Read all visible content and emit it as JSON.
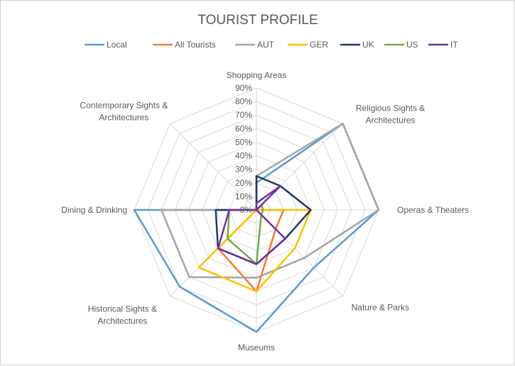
{
  "chart_data": {
    "type": "radar",
    "title": "TOURIST PROFILE",
    "categories": [
      [
        "Shopping Areas"
      ],
      [
        "Religious Sights &",
        "Architectures"
      ],
      [
        "Operas & Theaters"
      ],
      [
        "Nature & Parks"
      ],
      [
        "Museums"
      ],
      [
        "Historical Sights &",
        "Architectures"
      ],
      [
        "Dining & Drinking"
      ],
      [
        "Contemporary Sights &",
        "Architectures"
      ]
    ],
    "ticks": [
      "0%",
      "10%",
      "20%",
      "30%",
      "40%",
      "50%",
      "60%",
      "70%",
      "80%",
      "90%"
    ],
    "rmax": 90,
    "grid": true,
    "legend_position": "top",
    "series": [
      {
        "name": "Local",
        "color": "#5B9BD5",
        "values": [
          20,
          90,
          90,
          60,
          90,
          80,
          90,
          0
        ]
      },
      {
        "name": "All Tourists",
        "color": "#ED7D31",
        "values": [
          0,
          0,
          20,
          20,
          60,
          40,
          0,
          0
        ]
      },
      {
        "name": "AUT",
        "color": "#A5A5A5",
        "values": [
          25,
          90,
          90,
          50,
          50,
          70,
          70,
          0
        ]
      },
      {
        "name": "GER",
        "color": "#FFC000",
        "values": [
          0,
          0,
          40,
          40,
          60,
          60,
          0,
          0
        ]
      },
      {
        "name": "UK",
        "color": "#203864",
        "values": [
          25,
          25,
          40,
          30,
          40,
          40,
          30,
          0
        ]
      },
      {
        "name": "US",
        "color": "#70AD47",
        "values": [
          0,
          5,
          5,
          5,
          40,
          30,
          20,
          0
        ]
      },
      {
        "name": "IT",
        "color": "#7030A0",
        "values": [
          5,
          25,
          0,
          30,
          40,
          40,
          20,
          0
        ]
      }
    ]
  }
}
